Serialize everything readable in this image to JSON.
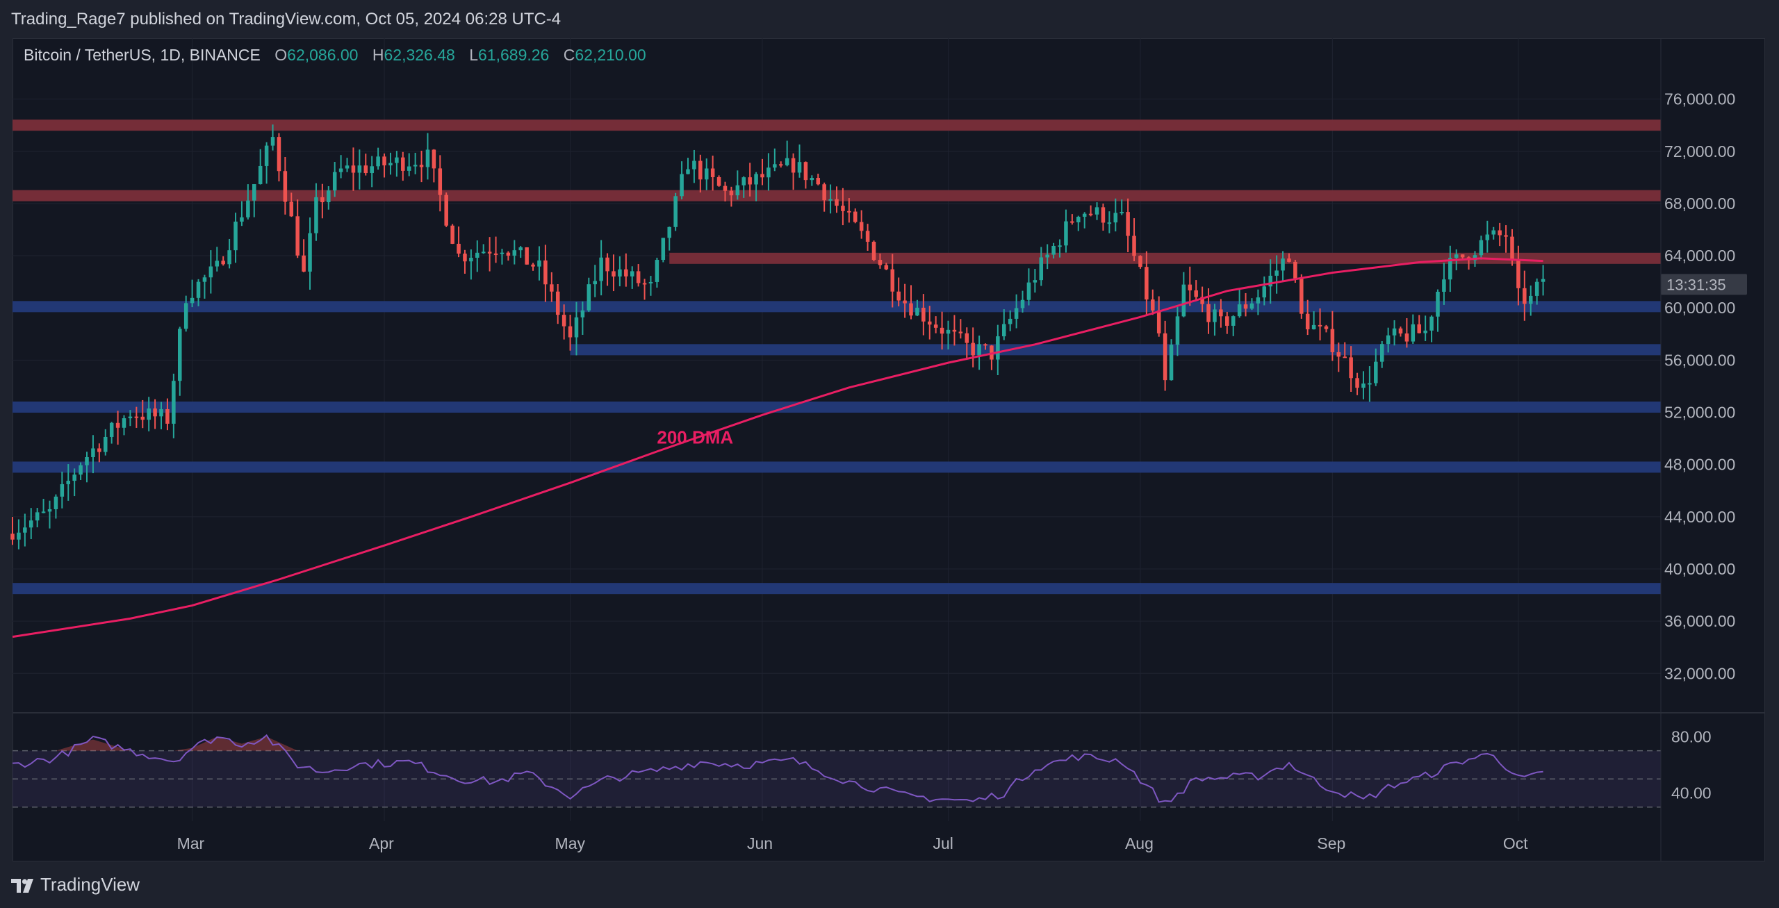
{
  "header": {
    "published_by": "Trading_Rage7 published on TradingView.com, Oct 05, 2024 06:28 UTC-4"
  },
  "legend": {
    "symbol": "Bitcoin / TetherUS, 1D, BINANCE",
    "open_label": "O",
    "open": "62,086.00",
    "high_label": "H",
    "high": "62,326.48",
    "low_label": "L",
    "low": "61,689.26",
    "close_label": "C",
    "close": "62,210.00"
  },
  "countdown": "13:31:35",
  "footer": {
    "brand": "TradingView",
    "logo_icon": "tradingview-logo-icon"
  },
  "colors": {
    "bull": "#26a69a",
    "bear": "#ef5350",
    "ma": "#e91e63",
    "resistance": "#7a2e3a",
    "support": "#233a7a",
    "rsi": "#7e57c2"
  },
  "chart_data": [
    {
      "type": "candlestick",
      "title": "Bitcoin / TetherUS, 1D, BINANCE",
      "x_ticks": [
        "Mar",
        "Apr",
        "May",
        "Jun",
        "Jul",
        "Aug",
        "Sep",
        "Oct"
      ],
      "x_tick_dates": [
        "2024-03-01",
        "2024-04-01",
        "2024-05-01",
        "2024-06-01",
        "2024-07-01",
        "2024-08-01",
        "2024-09-01",
        "2024-10-01"
      ],
      "y_ticks": [
        76000,
        72000,
        68000,
        64000,
        60000,
        56000,
        52000,
        48000,
        44000,
        40000,
        36000,
        32000
      ],
      "y_tick_labels": [
        "76,000.00",
        "72,000.00",
        "68,000.00",
        "64,000.00",
        "60,000.00",
        "56,000.00",
        "52,000.00",
        "48,000.00",
        "44,000.00",
        "40,000.00",
        "36,000.00",
        "32,000.00"
      ],
      "ylim": [
        29300,
        78800
      ],
      "xlim": [
        "2024-02-01",
        "2024-10-24"
      ],
      "grid": true,
      "annotation": "200 DMA",
      "horizontal_levels": [
        {
          "kind": "resistance",
          "price": 74000,
          "from": "2024-02-01",
          "to": "2024-10-24"
        },
        {
          "kind": "resistance",
          "price": 68600,
          "from": "2024-02-01",
          "to": "2024-10-24"
        },
        {
          "kind": "resistance",
          "price": 63800,
          "from": "2024-05-17",
          "to": "2024-10-24"
        },
        {
          "kind": "support",
          "price": 60100,
          "from": "2024-02-01",
          "to": "2024-10-24"
        },
        {
          "kind": "support",
          "price": 56800,
          "from": "2024-05-01",
          "to": "2024-10-24"
        },
        {
          "kind": "support",
          "price": 52400,
          "from": "2024-02-01",
          "to": "2024-10-24"
        },
        {
          "kind": "support",
          "price": 47800,
          "from": "2024-02-01",
          "to": "2024-10-24"
        },
        {
          "kind": "support",
          "price": 38500,
          "from": "2024-02-01",
          "to": "2024-10-24"
        }
      ],
      "close_path": [
        [
          "2024-02-01",
          43000
        ],
        [
          "2024-02-07",
          44300
        ],
        [
          "2024-02-12",
          48200
        ],
        [
          "2024-02-20",
          52000
        ],
        [
          "2024-02-26",
          51500
        ],
        [
          "2024-02-29",
          61000
        ],
        [
          "2024-03-05",
          63000
        ],
        [
          "2024-03-11",
          69500
        ],
        [
          "2024-03-14",
          73000
        ],
        [
          "2024-03-19",
          62500
        ],
        [
          "2024-03-21",
          67800
        ],
        [
          "2024-03-25",
          70500
        ],
        [
          "2024-04-08",
          71500
        ],
        [
          "2024-04-13",
          64000
        ],
        [
          "2024-04-20",
          64800
        ],
        [
          "2024-04-26",
          63000
        ],
        [
          "2024-05-01",
          57500
        ],
        [
          "2024-05-06",
          63500
        ],
        [
          "2024-05-14",
          61500
        ],
        [
          "2024-05-20",
          71200
        ],
        [
          "2024-05-26",
          68800
        ],
        [
          "2024-06-06",
          71000
        ],
        [
          "2024-06-10",
          69500
        ],
        [
          "2024-06-18",
          65000
        ],
        [
          "2024-06-24",
          60500
        ],
        [
          "2024-07-04",
          57000
        ],
        [
          "2024-07-08",
          56500
        ],
        [
          "2024-07-15",
          62500
        ],
        [
          "2024-07-22",
          67500
        ],
        [
          "2024-07-29",
          66800
        ],
        [
          "2024-08-04",
          58000
        ],
        [
          "2024-08-05",
          54000
        ],
        [
          "2024-08-08",
          61500
        ],
        [
          "2024-08-14",
          58700
        ],
        [
          "2024-08-20",
          61000
        ],
        [
          "2024-08-25",
          64200
        ],
        [
          "2024-08-27",
          59300
        ],
        [
          "2024-09-01",
          57300
        ],
        [
          "2024-09-06",
          53800
        ],
        [
          "2024-09-10",
          57600
        ],
        [
          "2024-09-16",
          58200
        ],
        [
          "2024-09-19",
          62900
        ],
        [
          "2024-09-26",
          65300
        ],
        [
          "2024-09-29",
          65600
        ],
        [
          "2024-10-01",
          60800
        ],
        [
          "2024-10-03",
          60600
        ],
        [
          "2024-10-05",
          62210
        ]
      ],
      "series": [
        {
          "name": "200 DMA",
          "type": "line",
          "points": [
            [
              "2024-02-01",
              34800
            ],
            [
              "2024-02-20",
              36200
            ],
            [
              "2024-03-01",
              37200
            ],
            [
              "2024-03-15",
              39200
            ],
            [
              "2024-04-01",
              41800
            ],
            [
              "2024-04-15",
              44000
            ],
            [
              "2024-05-01",
              46600
            ],
            [
              "2024-05-15",
              49000
            ],
            [
              "2024-06-01",
              51800
            ],
            [
              "2024-06-15",
              53900
            ],
            [
              "2024-07-01",
              55800
            ],
            [
              "2024-07-15",
              57200
            ],
            [
              "2024-08-01",
              59300
            ],
            [
              "2024-08-15",
              61300
            ],
            [
              "2024-09-01",
              62700
            ],
            [
              "2024-09-15",
              63500
            ],
            [
              "2024-09-25",
              63800
            ],
            [
              "2024-10-05",
              63600
            ]
          ]
        }
      ]
    },
    {
      "type": "line",
      "title": "",
      "y_ticks": [
        80,
        40
      ],
      "y_tick_labels": [
        "80.00",
        "40.00"
      ],
      "ylim": [
        20,
        95
      ],
      "band": [
        30,
        70
      ],
      "midline": 50,
      "series": [
        {
          "name": "",
          "points": [
            [
              "2024-02-01",
              60
            ],
            [
              "2024-02-08",
              65
            ],
            [
              "2024-02-14",
              78
            ],
            [
              "2024-02-20",
              70
            ],
            [
              "2024-02-27",
              63
            ],
            [
              "2024-03-01",
              72
            ],
            [
              "2024-03-05",
              80
            ],
            [
              "2024-03-09",
              75
            ],
            [
              "2024-03-13",
              80
            ],
            [
              "2024-03-18",
              60
            ],
            [
              "2024-03-22",
              55
            ],
            [
              "2024-03-27",
              60
            ],
            [
              "2024-04-05",
              62
            ],
            [
              "2024-04-13",
              50
            ],
            [
              "2024-04-19",
              48
            ],
            [
              "2024-04-24",
              54
            ],
            [
              "2024-05-01",
              38
            ],
            [
              "2024-05-07",
              50
            ],
            [
              "2024-05-15",
              56
            ],
            [
              "2024-05-22",
              62
            ],
            [
              "2024-05-29",
              60
            ],
            [
              "2024-06-06",
              63
            ],
            [
              "2024-06-15",
              48
            ],
            [
              "2024-06-24",
              38
            ],
            [
              "2024-07-05",
              34
            ],
            [
              "2024-07-10",
              40
            ],
            [
              "2024-07-15",
              58
            ],
            [
              "2024-07-22",
              66
            ],
            [
              "2024-07-29",
              63
            ],
            [
              "2024-08-05",
              32
            ],
            [
              "2024-08-10",
              50
            ],
            [
              "2024-08-20",
              52
            ],
            [
              "2024-08-25",
              61
            ],
            [
              "2024-08-30",
              46
            ],
            [
              "2024-09-06",
              35
            ],
            [
              "2024-09-11",
              46
            ],
            [
              "2024-09-16",
              52
            ],
            [
              "2024-09-22",
              63
            ],
            [
              "2024-09-27",
              68
            ],
            [
              "2024-10-01",
              50
            ],
            [
              "2024-10-05",
              53
            ]
          ]
        }
      ]
    }
  ]
}
